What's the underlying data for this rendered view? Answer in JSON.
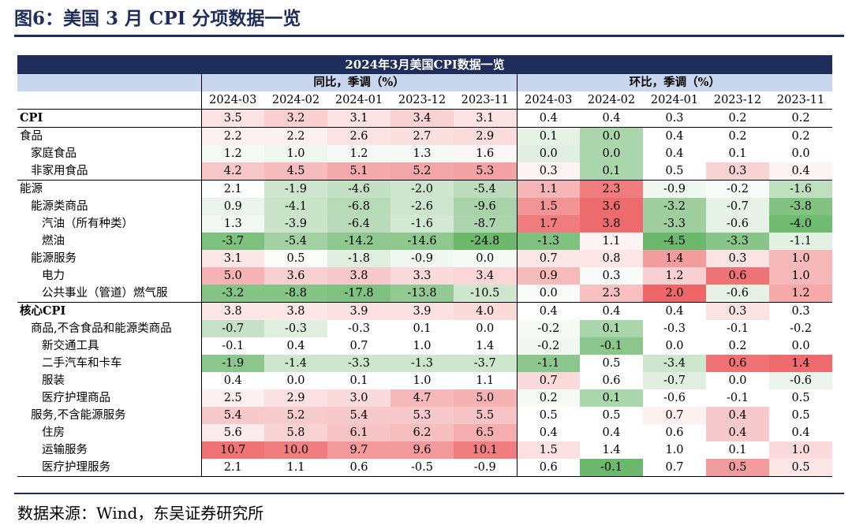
{
  "figure_title": "图6：美国 3 月 CPI 分项数据一览",
  "table_title": "2024年3月美国CPI数据一览",
  "groups": [
    "同比，季调（%）",
    "环比，季调（%）"
  ],
  "dates": [
    "2024-03",
    "2024-02",
    "2024-01",
    "2023-12",
    "2023-11"
  ],
  "rows": [
    {
      "label": "CPI",
      "indent": 0,
      "bold": true,
      "sec": true,
      "yoy": [
        "3.5",
        "3.2",
        "3.1",
        "3.4",
        "3.1"
      ],
      "yoy_colors": [
        "#fbe3e3",
        "#f9cfd0",
        "#fbe3e3",
        "#f9d3d4",
        "#fbe3e3"
      ],
      "mom": [
        "0.4",
        "0.4",
        "0.3",
        "0.2",
        "0.2"
      ],
      "mom_colors": [
        "#ffffff",
        "#ffffff",
        "#ffffff",
        "#ffffff",
        "#ffffff"
      ]
    },
    {
      "label": "食品",
      "indent": 0,
      "sec": true,
      "yoy": [
        "2.2",
        "2.2",
        "2.6",
        "2.7",
        "2.9"
      ],
      "yoy_colors": [
        "#fdf0f0",
        "#fdf0f0",
        "#fbe3e3",
        "#fbe0e0",
        "#fbdcdc"
      ],
      "mom": [
        "0.1",
        "0.0",
        "0.4",
        "0.2",
        "0.2"
      ],
      "mom_colors": [
        "#e6f2e6",
        "#a9d6aa",
        "#ffffff",
        "#ffffff",
        "#ffffff"
      ]
    },
    {
      "label": "家庭食品",
      "indent": 1,
      "yoy": [
        "1.2",
        "1.0",
        "1.2",
        "1.3",
        "1.6"
      ],
      "yoy_colors": [
        "#f5faf5",
        "#eff7ef",
        "#f5faf5",
        "#f5faf5",
        "#fdf7f7"
      ],
      "mom": [
        "0.0",
        "0.0",
        "0.4",
        "0.1",
        "0.0"
      ],
      "mom_colors": [
        "#e0efe0",
        "#a9d6aa",
        "#ffffff",
        "#ffffff",
        "#ffffff"
      ]
    },
    {
      "label": "非家用食品",
      "indent": 1,
      "yoy": [
        "4.2",
        "4.5",
        "5.1",
        "5.2",
        "5.3"
      ],
      "yoy_colors": [
        "#f8c8c9",
        "#f6bcbd",
        "#f4aaab",
        "#f3a6a7",
        "#f3a3a4"
      ],
      "mom": [
        "0.3",
        "0.1",
        "0.5",
        "0.3",
        "0.4"
      ],
      "mom_colors": [
        "#fdf3f3",
        "#a9d6aa",
        "#ffffff",
        "#f9d3d4",
        "#fdf3f3"
      ]
    },
    {
      "label": "能源",
      "indent": 0,
      "sec": true,
      "yoy": [
        "2.1",
        "-1.9",
        "-4.6",
        "-2.0",
        "-5.4"
      ],
      "yoy_colors": [
        "#ffffff",
        "#cde6cd",
        "#c4e1c4",
        "#cde6cd",
        "#bcdcbc"
      ],
      "mom": [
        "1.1",
        "2.3",
        "-0.9",
        "-0.2",
        "-1.6"
      ],
      "mom_colors": [
        "#f6b6b7",
        "#f07c7e",
        "#f1f8f1",
        "#f8fbf8",
        "#bfe0bf"
      ]
    },
    {
      "label": "能源类商品",
      "indent": 1,
      "yoy": [
        "0.9",
        "-4.1",
        "-6.8",
        "-2.6",
        "-9.6"
      ],
      "yoy_colors": [
        "#eaf4ea",
        "#c9e4c9",
        "#b7dab7",
        "#cde6cd",
        "#a8d3a8"
      ],
      "mom": [
        "1.5",
        "3.6",
        "-3.2",
        "-0.7",
        "-3.8"
      ],
      "mom_colors": [
        "#f29496",
        "#ee6b6d",
        "#9fcf9f",
        "#e6f2e6",
        "#82c383"
      ]
    },
    {
      "label": "汽油（所有种类）",
      "indent": 2,
      "yoy": [
        "1.3",
        "-3.9",
        "-6.4",
        "-1.6",
        "-8.7"
      ],
      "yoy_colors": [
        "#f2f8f2",
        "#c9e4c9",
        "#b9dbb9",
        "#d4e9d4",
        "#add5ad"
      ],
      "mom": [
        "1.7",
        "3.8",
        "-3.3",
        "-0.6",
        "-4.0"
      ],
      "mom_colors": [
        "#f07c7e",
        "#ee6b6d",
        "#9fcf9f",
        "#e6f2e6",
        "#6fbb70"
      ]
    },
    {
      "label": "燃油",
      "indent": 2,
      "yoy": [
        "-3.7",
        "-5.4",
        "-14.2",
        "-14.6",
        "-24.8"
      ],
      "yoy_colors": [
        "#7cc17d",
        "#a4d1a4",
        "#8fc88f",
        "#8fc88f",
        "#6cb86d"
      ],
      "mom": [
        "-1.3",
        "1.1",
        "-4.5",
        "-3.3",
        "-1.1"
      ],
      "mom_colors": [
        "#7fc180",
        "#fdf3f3",
        "#6cb86d",
        "#87c688",
        "#e3f1e3"
      ]
    },
    {
      "label": "能源服务",
      "indent": 1,
      "yoy": [
        "3.1",
        "0.5",
        "-1.8",
        "-0.9",
        "0.0"
      ],
      "yoy_colors": [
        "#fce6e6",
        "#f9fcf9",
        "#e0efe0",
        "#f1f8f1",
        "#f5faf5"
      ],
      "mom": [
        "0.7",
        "0.8",
        "1.4",
        "0.3",
        "1.0"
      ],
      "mom_colors": [
        "#fce6e6",
        "#fce6e6",
        "#f39c9e",
        "#fbe3e3",
        "#f6b8b9"
      ]
    },
    {
      "label": "电力",
      "indent": 2,
      "yoy": [
        "5.0",
        "3.6",
        "3.8",
        "3.3",
        "3.4"
      ],
      "yoy_colors": [
        "#f5b3b4",
        "#f9d0d1",
        "#f8c9ca",
        "#fadada",
        "#fad6d6"
      ],
      "mom": [
        "0.9",
        "0.3",
        "1.2",
        "0.6",
        "1.0"
      ],
      "mom_colors": [
        "#f6babb",
        "#f8fbf8",
        "#f9d0d1",
        "#ef7375",
        "#f6b8b9"
      ]
    },
    {
      "label": "公共事业（管道）燃气服",
      "indent": 2,
      "yoy": [
        "-3.2",
        "-8.8",
        "-17.8",
        "-13.8",
        "-10.5"
      ],
      "yoy_colors": [
        "#84c485",
        "#84c485",
        "#7fc180",
        "#93ca94",
        "#cde6cd"
      ],
      "mom": [
        "0.0",
        "2.3",
        "2.0",
        "-0.6",
        "1.2"
      ],
      "mom_colors": [
        "#f8fbf8",
        "#f8c0c1",
        "#ee6668",
        "#e6f2e6",
        "#f7a8a9"
      ]
    },
    {
      "label": "核心CPI",
      "indent": 0,
      "bold": true,
      "sec": true,
      "yoy": [
        "3.8",
        "3.8",
        "3.9",
        "3.9",
        "4.0"
      ],
      "yoy_colors": [
        "#fce6e6",
        "#fce6e6",
        "#fbe1e1",
        "#fbe1e1",
        "#fbdada"
      ],
      "mom": [
        "0.4",
        "0.4",
        "0.4",
        "0.3",
        "0.3"
      ],
      "mom_colors": [
        "#ffffff",
        "#ffffff",
        "#ffffff",
        "#fbe3e3",
        "#ffffff"
      ]
    },
    {
      "label": "商品,不含食品和能源类商品",
      "indent": 1,
      "yoy": [
        "-0.7",
        "-0.3",
        "-0.3",
        "0.1",
        "0.0"
      ],
      "yoy_colors": [
        "#c6e2c6",
        "#e0efe0",
        "#ffffff",
        "#ffffff",
        "#ffffff"
      ],
      "mom": [
        "-0.2",
        "0.1",
        "-0.3",
        "-0.1",
        "-0.2"
      ],
      "mom_colors": [
        "#f5faf5",
        "#a9d6aa",
        "#ffffff",
        "#ffffff",
        "#ffffff"
      ]
    },
    {
      "label": "新交通工具",
      "indent": 2,
      "yoy": [
        "-0.1",
        "0.4",
        "0.7",
        "1.0",
        "1.4"
      ],
      "yoy_colors": [
        "#ffffff",
        "#ffffff",
        "#ffffff",
        "#ffffff",
        "#ffffff"
      ],
      "mom": [
        "-0.2",
        "-0.1",
        "0.0",
        "0.2",
        "0.0"
      ],
      "mom_colors": [
        "#f1f8f1",
        "#8bc78c",
        "#ffffff",
        "#ffffff",
        "#ffffff"
      ]
    },
    {
      "label": "二手汽车和卡车",
      "indent": 2,
      "yoy": [
        "-1.9",
        "-1.4",
        "-3.3",
        "-1.3",
        "-3.7"
      ],
      "yoy_colors": [
        "#8bc78c",
        "#cde6cd",
        "#cde6cd",
        "#cde6cd",
        "#cde6cd"
      ],
      "mom": [
        "-1.1",
        "0.5",
        "-3.4",
        "0.6",
        "1.4"
      ],
      "mom_colors": [
        "#8bc78c",
        "#ffffff",
        "#cde6cd",
        "#ef7375",
        "#ee6b6d"
      ]
    },
    {
      "label": "服装",
      "indent": 2,
      "yoy": [
        "0.4",
        "0.0",
        "0.1",
        "1.0",
        "1.1"
      ],
      "yoy_colors": [
        "#ffffff",
        "#ffffff",
        "#ffffff",
        "#ffffff",
        "#ffffff"
      ],
      "mom": [
        "0.7",
        "0.6",
        "-0.7",
        "0.0",
        "-0.6"
      ],
      "mom_colors": [
        "#fadada",
        "#ffffff",
        "#e0efe0",
        "#ffffff",
        "#eaf4ea"
      ]
    },
    {
      "label": "医疗护理商品",
      "indent": 2,
      "yoy": [
        "2.5",
        "2.9",
        "3.0",
        "4.7",
        "5.0"
      ],
      "yoy_colors": [
        "#fdf0f0",
        "#fbe1e1",
        "#fadada",
        "#f6b8b9",
        "#f6b2b3"
      ],
      "mom": [
        "0.2",
        "0.1",
        "-0.6",
        "-0.1",
        "0.5"
      ],
      "mom_colors": [
        "#f5faf5",
        "#a9d6aa",
        "#ffffff",
        "#ffffff",
        "#ffffff"
      ]
    },
    {
      "label": "服务,不含能源服务",
      "indent": 1,
      "yoy": [
        "5.4",
        "5.2",
        "5.4",
        "5.3",
        "5.5"
      ],
      "yoy_colors": [
        "#f8c9ca",
        "#f8cccd",
        "#f8c9ca",
        "#f8c9ca",
        "#f7c4c5"
      ],
      "mom": [
        "0.5",
        "0.5",
        "0.7",
        "0.4",
        "0.5"
      ],
      "mom_colors": [
        "#ffffff",
        "#ffffff",
        "#fdf0f0",
        "#f8c9ca",
        "#ffffff"
      ]
    },
    {
      "label": "住房",
      "indent": 2,
      "yoy": [
        "5.6",
        "5.8",
        "6.1",
        "6.2",
        "6.5"
      ],
      "yoy_colors": [
        "#fcebeb",
        "#f9d3d4",
        "#f7c4c5",
        "#f6bebf",
        "#f4aeaf"
      ],
      "mom": [
        "0.4",
        "0.4",
        "0.6",
        "0.4",
        "0.4"
      ],
      "mom_colors": [
        "#ffffff",
        "#ffffff",
        "#ffffff",
        "#f8c9ca",
        "#ffffff"
      ]
    },
    {
      "label": "运输服务",
      "indent": 2,
      "yoy": [
        "10.7",
        "10.0",
        "9.7",
        "9.6",
        "10.1"
      ],
      "yoy_colors": [
        "#f07476",
        "#f07e80",
        "#f3999b",
        "#f3999b",
        "#f07e80"
      ],
      "mom": [
        "1.5",
        "1.4",
        "1.0",
        "0.1",
        "1.0"
      ],
      "mom_colors": [
        "#fbe1e1",
        "#ffffff",
        "#ffffff",
        "#ffffff",
        "#fadada"
      ]
    },
    {
      "label": "医疗护理服务",
      "indent": 2,
      "last": true,
      "yoy": [
        "2.1",
        "1.1",
        "0.6",
        "-0.5",
        "-0.9"
      ],
      "yoy_colors": [
        "#ffffff",
        "#ffffff",
        "#ffffff",
        "#ffffff",
        "#ffffff"
      ],
      "mom": [
        "0.6",
        "-0.1",
        "0.7",
        "0.5",
        "0.5"
      ],
      "mom_colors": [
        "#ffffff",
        "#6cb86d",
        "#ffffff",
        "#f39c9e",
        "#fce6e6"
      ]
    }
  ],
  "source": "数据来源：Wind，东吴证券研究所"
}
